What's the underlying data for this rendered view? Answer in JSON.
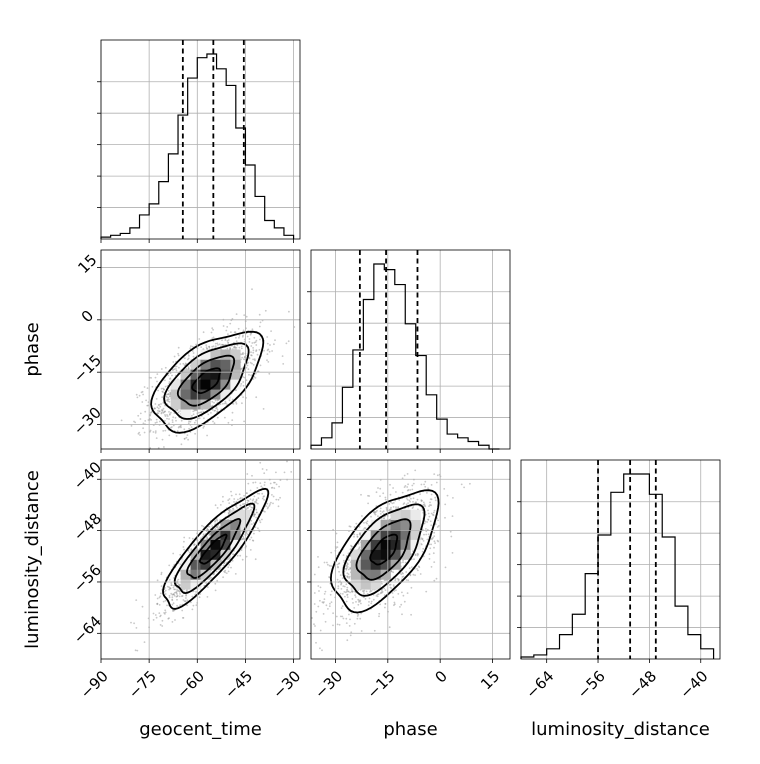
{
  "chart_data": {
    "type": "corner",
    "parameters": [
      "geocent_time",
      "phase",
      "luminosity_distance"
    ],
    "axes": {
      "geocent_time": {
        "range": [
          -90,
          -28
        ],
        "ticks": [
          -90,
          -75,
          -60,
          -45,
          -30
        ]
      },
      "phase": {
        "range": [
          -37,
          20
        ],
        "ticks": [
          -30,
          -15,
          0,
          15
        ]
      },
      "luminosity_distance": {
        "range": [
          -68,
          -37
        ],
        "ticks": [
          -64,
          -56,
          -48,
          -40
        ]
      }
    },
    "histograms": {
      "geocent_time": {
        "bin_edges": [
          -90,
          -87,
          -84,
          -81,
          -78,
          -75,
          -72,
          -69,
          -66,
          -63,
          -60,
          -57,
          -54,
          -51,
          -48,
          -45,
          -42,
          -39,
          -36,
          -33,
          -30
        ],
        "counts": [
          0.01,
          0.02,
          0.03,
          0.06,
          0.13,
          0.19,
          0.31,
          0.46,
          0.67,
          0.87,
          0.98,
          1.0,
          0.92,
          0.83,
          0.6,
          0.4,
          0.23,
          0.1,
          0.06,
          0.02
        ],
        "quantiles": [
          -64.5,
          -55.0,
          -45.5
        ]
      },
      "phase": {
        "bin_edges": [
          -37,
          -34,
          -31,
          -28,
          -25,
          -22,
          -19,
          -16,
          -13,
          -10,
          -7,
          -4,
          -1,
          2,
          5,
          8,
          11,
          14,
          17
        ],
        "counts": [
          0.02,
          0.06,
          0.14,
          0.33,
          0.53,
          0.8,
          0.99,
          0.96,
          0.88,
          0.67,
          0.5,
          0.29,
          0.16,
          0.08,
          0.06,
          0.04,
          0.02,
          0.0
        ],
        "quantiles": [
          -23.0,
          -15.5,
          -6.5
        ]
      },
      "luminosity_distance": {
        "bin_edges": [
          -68,
          -66,
          -64,
          -62,
          -60,
          -58,
          -56,
          -54,
          -52,
          -50,
          -48,
          -46,
          -44,
          -42,
          -40,
          -38
        ],
        "counts": [
          0.01,
          0.02,
          0.05,
          0.12,
          0.22,
          0.42,
          0.61,
          0.82,
          0.91,
          0.91,
          0.81,
          0.6,
          0.26,
          0.12,
          0.05
        ],
        "quantiles": [
          -56.0,
          -51.0,
          -47.0
        ]
      }
    },
    "pairs": [
      {
        "x": "geocent_time",
        "y": "phase",
        "mean": [
          -57,
          -17.5
        ],
        "sd": [
          8.5,
          7.0
        ],
        "corr": 0.58
      },
      {
        "x": "geocent_time",
        "y": "luminosity_distance",
        "mean": [
          -55,
          -51
        ],
        "sd": [
          8.0,
          4.5
        ],
        "corr": 0.86
      },
      {
        "x": "phase",
        "y": "luminosity_distance",
        "mean": [
          -16,
          -51
        ],
        "sd": [
          7.5,
          4.6
        ],
        "corr": 0.6
      }
    ],
    "contour_levels_sigma": [
      0.5,
      1.0,
      1.5,
      2.0
    ],
    "grid": true,
    "colors": {
      "line": "#000000",
      "grid": "#b0b0b0",
      "points": "#9a9a9a"
    }
  }
}
